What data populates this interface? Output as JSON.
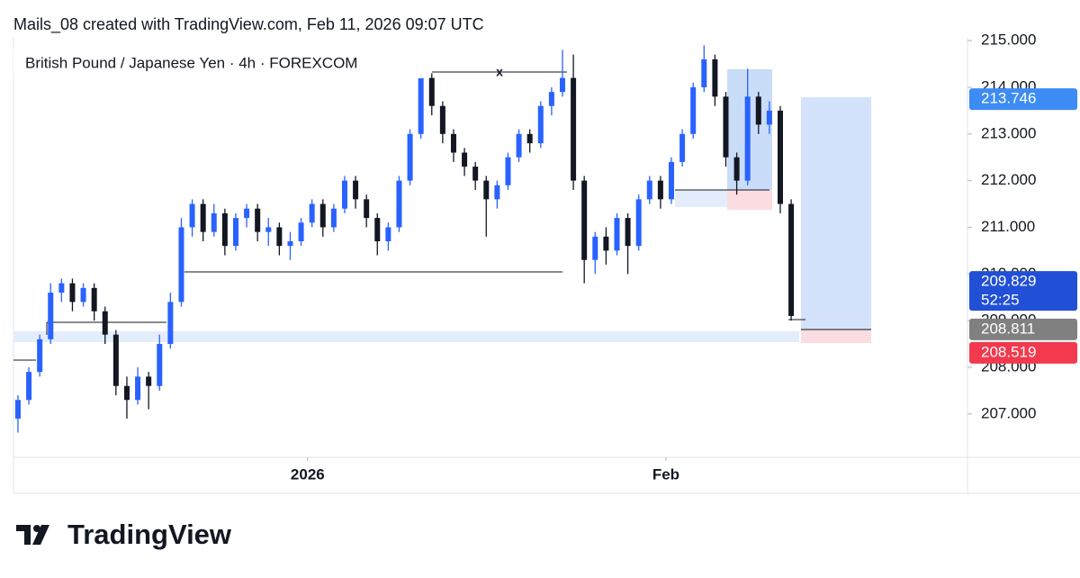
{
  "header": {
    "title": "Mails_08 created with TradingView.com, Feb 11, 2026 09:07 UTC"
  },
  "chart_data": {
    "type": "candlestick",
    "title": "British Pound / Japanese Yen · 4h · FOREXCOM",
    "up_color": "#2962ff",
    "down_color": "#131722",
    "xlim": [
      -0.41,
      87.19
    ],
    "xticks": [
      {
        "value": 26.6,
        "label": "2026"
      },
      {
        "value": 59.5,
        "label": "Feb"
      }
    ],
    "ylim": [
      206.07,
      215.06
    ],
    "yticks": [
      {
        "value": 207,
        "label": "207.000"
      },
      {
        "value": 208,
        "label": "208.000"
      },
      {
        "value": 209,
        "label": "209.000"
      },
      {
        "value": 210,
        "label": "210.000"
      },
      {
        "value": 211,
        "label": "211.000"
      },
      {
        "value": 212,
        "label": "212.000"
      },
      {
        "value": 213,
        "label": "213.000"
      },
      {
        "value": 214,
        "label": "214.000"
      },
      {
        "value": 215,
        "label": "215.000"
      }
    ],
    "candles": [
      [
        206.9,
        207.4,
        206.6,
        207.3
      ],
      [
        207.3,
        208.0,
        207.2,
        207.9
      ],
      [
        207.9,
        208.7,
        207.8,
        208.6
      ],
      [
        208.6,
        209.8,
        208.5,
        209.6
      ],
      [
        209.6,
        209.9,
        209.4,
        209.8
      ],
      [
        209.8,
        209.9,
        209.2,
        209.4
      ],
      [
        209.4,
        209.8,
        209.3,
        209.7
      ],
      [
        209.7,
        209.8,
        209.0,
        209.2
      ],
      [
        209.2,
        209.3,
        208.5,
        208.7
      ],
      [
        208.7,
        208.8,
        207.4,
        207.6
      ],
      [
        207.6,
        207.8,
        206.9,
        207.3
      ],
      [
        207.3,
        208.0,
        207.2,
        207.8
      ],
      [
        207.8,
        207.9,
        207.1,
        207.6
      ],
      [
        207.6,
        208.7,
        207.5,
        208.5
      ],
      [
        208.5,
        209.6,
        208.4,
        209.4
      ],
      [
        209.4,
        211.2,
        209.3,
        211.0
      ],
      [
        211.0,
        211.6,
        210.8,
        211.5
      ],
      [
        211.5,
        211.6,
        210.7,
        210.9
      ],
      [
        210.9,
        211.5,
        210.8,
        211.3
      ],
      [
        211.3,
        211.4,
        210.4,
        210.6
      ],
      [
        210.6,
        211.3,
        210.5,
        211.2
      ],
      [
        211.2,
        211.5,
        211.0,
        211.4
      ],
      [
        211.4,
        211.5,
        210.7,
        210.9
      ],
      [
        210.9,
        211.2,
        210.6,
        211.0
      ],
      [
        211.0,
        211.1,
        210.4,
        210.6
      ],
      [
        210.6,
        210.9,
        210.3,
        210.7
      ],
      [
        210.7,
        211.2,
        210.6,
        211.1
      ],
      [
        211.1,
        211.6,
        211.0,
        211.5
      ],
      [
        211.5,
        211.6,
        210.8,
        211.0
      ],
      [
        211.0,
        211.5,
        210.9,
        211.4
      ],
      [
        211.4,
        212.1,
        211.3,
        212.0
      ],
      [
        212.0,
        212.1,
        211.4,
        211.6
      ],
      [
        211.6,
        211.7,
        211.0,
        211.2
      ],
      [
        211.2,
        211.3,
        210.4,
        210.7
      ],
      [
        210.7,
        211.1,
        210.5,
        211.0
      ],
      [
        211.0,
        212.1,
        210.9,
        212.0
      ],
      [
        212.0,
        213.1,
        211.9,
        213.0
      ],
      [
        213.0,
        214.3,
        212.9,
        214.2
      ],
      [
        214.2,
        214.3,
        213.4,
        213.6
      ],
      [
        213.6,
        213.7,
        212.8,
        213.0
      ],
      [
        213.0,
        213.1,
        212.4,
        212.6
      ],
      [
        212.6,
        212.7,
        212.1,
        212.3
      ],
      [
        212.3,
        212.4,
        211.8,
        212.0
      ],
      [
        212.0,
        212.1,
        210.8,
        211.6
      ],
      [
        211.6,
        212.0,
        211.4,
        211.9
      ],
      [
        211.9,
        212.6,
        211.8,
        212.5
      ],
      [
        212.5,
        213.1,
        212.4,
        213.0
      ],
      [
        213.0,
        213.1,
        212.6,
        212.8
      ],
      [
        212.8,
        213.7,
        212.7,
        213.6
      ],
      [
        213.6,
        214.0,
        213.4,
        213.9
      ],
      [
        213.9,
        214.8,
        213.8,
        214.2
      ],
      [
        214.2,
        214.7,
        211.8,
        212.0
      ],
      [
        212.0,
        212.1,
        209.8,
        210.3
      ],
      [
        210.3,
        210.9,
        210.0,
        210.8
      ],
      [
        210.8,
        211.0,
        210.2,
        210.5
      ],
      [
        210.5,
        211.3,
        210.4,
        211.2
      ],
      [
        211.2,
        211.3,
        210.0,
        210.6
      ],
      [
        210.6,
        211.7,
        210.5,
        211.6
      ],
      [
        211.6,
        212.1,
        211.5,
        212.0
      ],
      [
        212.0,
        212.1,
        211.4,
        211.6
      ],
      [
        211.6,
        212.5,
        211.5,
        212.4
      ],
      [
        212.4,
        213.1,
        212.3,
        213.0
      ],
      [
        213.0,
        214.1,
        212.9,
        214.0
      ],
      [
        214.0,
        214.9,
        213.9,
        214.6
      ],
      [
        214.6,
        214.7,
        213.6,
        213.8
      ],
      [
        213.8,
        213.9,
        212.3,
        212.5
      ],
      [
        212.5,
        212.6,
        211.7,
        212.0
      ],
      [
        212.0,
        214.4,
        211.9,
        213.8
      ],
      [
        213.8,
        213.9,
        213.0,
        213.2
      ],
      [
        213.2,
        213.7,
        213.0,
        213.5
      ],
      [
        213.5,
        213.6,
        211.3,
        211.5
      ],
      [
        211.5,
        211.6,
        209.0,
        209.1
      ]
    ],
    "price_labels": [
      {
        "value": 213.746,
        "label": "213.746",
        "color": "#3d8bf5"
      },
      {
        "value": 209.829,
        "label": "209.829",
        "countdown": "52:25",
        "color": "#2150d6"
      },
      {
        "value": 208.811,
        "label": "208.811",
        "color": "#808080"
      },
      {
        "value": 208.519,
        "label": "208.519",
        "color": "#f2394e"
      }
    ],
    "annotation": "x"
  },
  "footer": {
    "brand": "TradingView"
  }
}
